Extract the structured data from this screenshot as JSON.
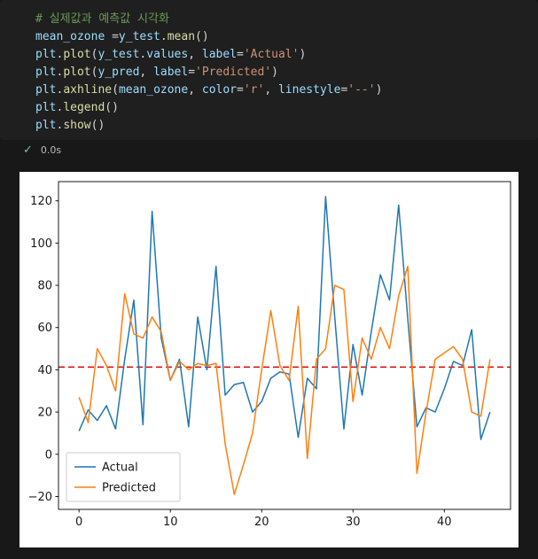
{
  "cell": {
    "code_lines": [
      [
        {
          "t": "# 실제값과 예측값 시각화",
          "c": "comment"
        }
      ],
      [
        {
          "t": "mean_ozone ",
          "c": "var"
        },
        {
          "t": "=",
          "c": "fg"
        },
        {
          "t": "y_test",
          "c": "var"
        },
        {
          "t": ".",
          "c": "fg"
        },
        {
          "t": "mean",
          "c": "fn"
        },
        {
          "t": "()",
          "c": "fg"
        }
      ],
      [
        {
          "t": "plt",
          "c": "var"
        },
        {
          "t": ".",
          "c": "fg"
        },
        {
          "t": "plot",
          "c": "fn"
        },
        {
          "t": "(",
          "c": "fg"
        },
        {
          "t": "y_test",
          "c": "var"
        },
        {
          "t": ".",
          "c": "fg"
        },
        {
          "t": "values",
          "c": "var"
        },
        {
          "t": ", ",
          "c": "fg"
        },
        {
          "t": "label",
          "c": "var"
        },
        {
          "t": "=",
          "c": "fg"
        },
        {
          "t": "'Actual'",
          "c": "str"
        },
        {
          "t": ")",
          "c": "fg"
        }
      ],
      [
        {
          "t": "plt",
          "c": "var"
        },
        {
          "t": ".",
          "c": "fg"
        },
        {
          "t": "plot",
          "c": "fn"
        },
        {
          "t": "(",
          "c": "fg"
        },
        {
          "t": "y_pred",
          "c": "var"
        },
        {
          "t": ", ",
          "c": "fg"
        },
        {
          "t": "label",
          "c": "var"
        },
        {
          "t": "=",
          "c": "fg"
        },
        {
          "t": "'Predicted'",
          "c": "str"
        },
        {
          "t": ")",
          "c": "fg"
        }
      ],
      [
        {
          "t": "plt",
          "c": "var"
        },
        {
          "t": ".",
          "c": "fg"
        },
        {
          "t": "axhline",
          "c": "fn"
        },
        {
          "t": "(",
          "c": "fg"
        },
        {
          "t": "mean_ozone",
          "c": "var"
        },
        {
          "t": ", ",
          "c": "fg"
        },
        {
          "t": "color",
          "c": "var"
        },
        {
          "t": "=",
          "c": "fg"
        },
        {
          "t": "'r'",
          "c": "str"
        },
        {
          "t": ", ",
          "c": "fg"
        },
        {
          "t": "linestyle",
          "c": "var"
        },
        {
          "t": "=",
          "c": "fg"
        },
        {
          "t": "'--'",
          "c": "str"
        },
        {
          "t": ")",
          "c": "fg"
        }
      ],
      [
        {
          "t": "plt",
          "c": "var"
        },
        {
          "t": ".",
          "c": "fg"
        },
        {
          "t": "legend",
          "c": "fn"
        },
        {
          "t": "()",
          "c": "fg"
        }
      ],
      [
        {
          "t": "plt",
          "c": "var"
        },
        {
          "t": ".",
          "c": "fg"
        },
        {
          "t": "show",
          "c": "fn"
        },
        {
          "t": "()",
          "c": "fg"
        }
      ]
    ],
    "status": {
      "check_glyph": "✓",
      "time": "0.0s"
    }
  },
  "chart_data": {
    "type": "line",
    "title": "",
    "xlabel": "",
    "ylabel": "",
    "x_is_index": true,
    "n_points": 46,
    "series": [
      {
        "name": "Actual",
        "color": "#1f77b4",
        "values": [
          11,
          21,
          16,
          23,
          12,
          45,
          73,
          14,
          115,
          55,
          35,
          45,
          13,
          65,
          40,
          89,
          28,
          33,
          34,
          20,
          25,
          36,
          39,
          38,
          8,
          36,
          31,
          122,
          65,
          12,
          52,
          28,
          58,
          85,
          73,
          118,
          64,
          13,
          22,
          20,
          31,
          44,
          42,
          59,
          7,
          20
        ]
      },
      {
        "name": "Predicted",
        "color": "#ff7f0e",
        "values": [
          27,
          15,
          50,
          42,
          30,
          76,
          57,
          55,
          65,
          58,
          35,
          44,
          40,
          43,
          42,
          43,
          5,
          -19,
          -5,
          10,
          40,
          68,
          42,
          35,
          70,
          -2,
          45,
          50,
          80,
          78,
          25,
          55,
          45,
          60,
          50,
          75,
          89,
          -9,
          20,
          45,
          48,
          51,
          45,
          20,
          18,
          45
        ]
      }
    ],
    "mean_line": {
      "value": 41.3,
      "color": "#e00000",
      "linestyle": "dashed"
    },
    "xticks": [
      0,
      10,
      20,
      30,
      40
    ],
    "yticks": [
      -20,
      0,
      20,
      40,
      60,
      80,
      100,
      120
    ],
    "xlim": [
      -2.25,
      47.25
    ],
    "ylim": [
      -26.1,
      129.1
    ],
    "grid": false,
    "legend": {
      "position": "lower left",
      "entries": [
        "Actual",
        "Predicted"
      ]
    },
    "background": "#ffffff"
  }
}
